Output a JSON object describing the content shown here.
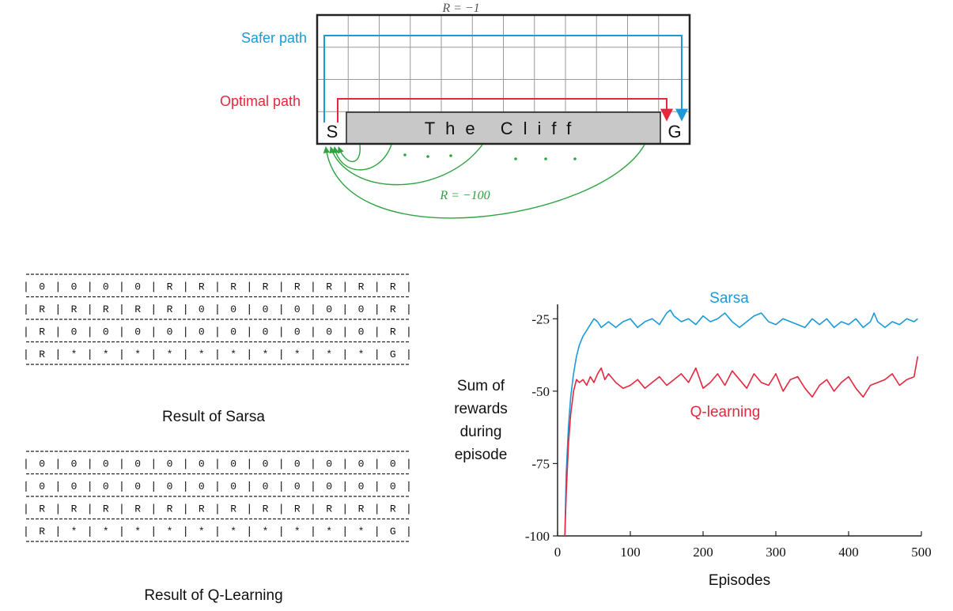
{
  "cliff_diagram": {
    "reward_top": "R = −1",
    "reward_cliff": "R = −100",
    "safer_path_label": "Safer path",
    "optimal_path_label": "Optimal path",
    "start_label": "S",
    "goal_label": "G",
    "cliff_label": "The Cliff",
    "cols": 12,
    "rows": 4,
    "colors": {
      "safer": "#1a9ad8",
      "optimal": "#e5273d",
      "cliff_fill": "#c8c8c8",
      "cliff_arrows": "#2fa341"
    }
  },
  "sarsa_table": {
    "caption": "Result of Sarsa",
    "rows": [
      [
        "0",
        "0",
        "0",
        "0",
        "R",
        "R",
        "R",
        "R",
        "R",
        "R",
        "R",
        "R"
      ],
      [
        "R",
        "R",
        "R",
        "R",
        "R",
        "0",
        "0",
        "0",
        "0",
        "0",
        "0",
        "R"
      ],
      [
        "R",
        "0",
        "0",
        "0",
        "0",
        "0",
        "0",
        "0",
        "0",
        "0",
        "0",
        "R"
      ],
      [
        "R",
        "*",
        "*",
        "*",
        "*",
        "*",
        "*",
        "*",
        "*",
        "*",
        "*",
        "G"
      ]
    ]
  },
  "qlearning_table": {
    "caption": "Result of Q-Learning",
    "rows": [
      [
        "0",
        "0",
        "0",
        "0",
        "0",
        "0",
        "0",
        "0",
        "0",
        "0",
        "0",
        "0"
      ],
      [
        "0",
        "0",
        "0",
        "0",
        "0",
        "0",
        "0",
        "0",
        "0",
        "0",
        "0",
        "0"
      ],
      [
        "R",
        "R",
        "R",
        "R",
        "R",
        "R",
        "R",
        "R",
        "R",
        "R",
        "R",
        "R"
      ],
      [
        "R",
        "*",
        "*",
        "*",
        "*",
        "*",
        "*",
        "*",
        "*",
        "*",
        "*",
        "G"
      ]
    ]
  },
  "chart_data": {
    "type": "line",
    "xlabel": "Episodes",
    "ylabel_lines": [
      "Sum of",
      "rewards",
      "during",
      "episode"
    ],
    "xlim": [
      0,
      500
    ],
    "ylim": [
      -100,
      -20
    ],
    "xticks": [
      0,
      100,
      200,
      300,
      400,
      500
    ],
    "yticks": [
      -25,
      -50,
      -75,
      -100
    ],
    "series": [
      {
        "name": "Sarsa",
        "color": "#1a9ad8",
        "x": [
          10,
          12,
          15,
          18,
          22,
          26,
          30,
          35,
          40,
          45,
          50,
          55,
          60,
          65,
          70,
          80,
          90,
          100,
          110,
          120,
          130,
          140,
          150,
          155,
          160,
          170,
          180,
          190,
          200,
          210,
          220,
          230,
          240,
          250,
          260,
          270,
          280,
          290,
          300,
          310,
          320,
          330,
          340,
          350,
          360,
          370,
          380,
          390,
          400,
          410,
          420,
          430,
          435,
          440,
          450,
          460,
          470,
          480,
          490,
          495
        ],
        "y": [
          -100,
          -78,
          -62,
          -52,
          -44,
          -38,
          -34,
          -31,
          -29,
          -27,
          -25,
          -26,
          -28,
          -27,
          -26,
          -28,
          -26,
          -25,
          -28,
          -26,
          -25,
          -27,
          -23,
          -22,
          -24,
          -26,
          -25,
          -27,
          -24,
          -26,
          -25,
          -23,
          -26,
          -28,
          -26,
          -24,
          -23,
          -26,
          -27,
          -25,
          -26,
          -27,
          -28,
          -25,
          -27,
          -25,
          -28,
          -26,
          -27,
          -25,
          -28,
          -26,
          -23,
          -26,
          -28,
          -26,
          -27,
          -25,
          -26,
          -25
        ]
      },
      {
        "name": "Q-learning",
        "color": "#e5273d",
        "x": [
          10,
          12,
          15,
          18,
          22,
          26,
          30,
          35,
          40,
          45,
          50,
          55,
          60,
          65,
          70,
          80,
          90,
          100,
          110,
          120,
          130,
          140,
          150,
          160,
          170,
          180,
          190,
          200,
          210,
          220,
          230,
          240,
          250,
          260,
          270,
          280,
          290,
          300,
          310,
          320,
          330,
          340,
          350,
          360,
          370,
          380,
          390,
          400,
          410,
          420,
          430,
          440,
          450,
          460,
          470,
          480,
          490,
          495
        ],
        "y": [
          -100,
          -85,
          -68,
          -58,
          -50,
          -46,
          -47,
          -46,
          -48,
          -45,
          -47,
          -44,
          -42,
          -46,
          -44,
          -47,
          -49,
          -48,
          -46,
          -49,
          -47,
          -45,
          -48,
          -46,
          -44,
          -47,
          -42,
          -49,
          -47,
          -44,
          -48,
          -43,
          -46,
          -49,
          -44,
          -47,
          -48,
          -44,
          -50,
          -46,
          -45,
          -49,
          -52,
          -48,
          -46,
          -50,
          -47,
          -45,
          -49,
          -52,
          -48,
          -47,
          -46,
          -44,
          -48,
          -46,
          -45,
          -38
        ]
      }
    ]
  }
}
